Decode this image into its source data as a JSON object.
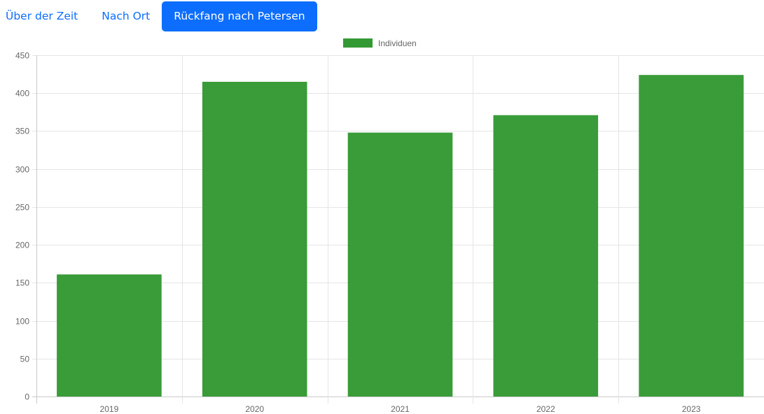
{
  "tabs": [
    {
      "label": "Über der Zeit",
      "active": false
    },
    {
      "label": "Nach Ort",
      "active": false
    },
    {
      "label": "Rückfang nach Petersen",
      "active": true
    }
  ],
  "colors": {
    "accent": "#0d6efd",
    "bar": "#339933",
    "grid": "#e5e5e5",
    "tick_text": "#666666"
  },
  "chart_data": {
    "type": "bar",
    "categories": [
      "2019",
      "2020",
      "2021",
      "2022",
      "2023"
    ],
    "series": [
      {
        "name": "Individuen",
        "values": [
          161,
          415,
          348,
          371,
          424
        ]
      }
    ],
    "ylim": [
      0,
      450
    ],
    "yticks": [
      0,
      50,
      100,
      150,
      200,
      250,
      300,
      350,
      400,
      450
    ],
    "grid": true,
    "legend_position": "top-center"
  }
}
